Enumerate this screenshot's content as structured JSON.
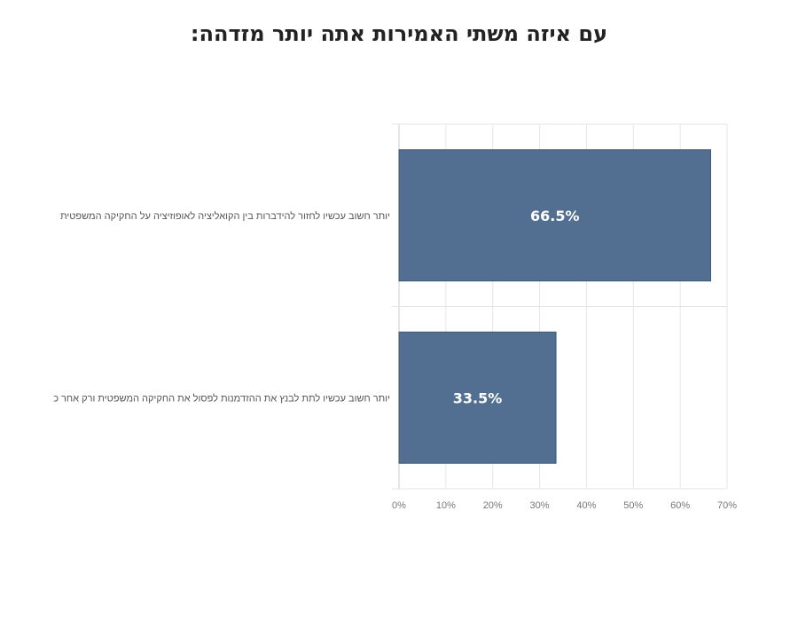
{
  "colors": {
    "bar": "#526f91",
    "bar_edge": "#3f5a7a",
    "grid": "#e6e6e6",
    "axis": "#cccccc"
  },
  "chart_data": {
    "type": "bar",
    "orientation": "horizontal",
    "title": "עם איזה משתי האמירות אתה יותר מזדהה:",
    "categories": [
      "יותר חשוב עכשיו לחזור להידברות בין הקואליציה לאופוזיציה על החקיקה המשפטית",
      "יותר חשוב עכשיו לתת לבנץ את ההזדמנות לפסול את החקיקה המשפטית ורק אחר כ"
    ],
    "values": [
      66.5,
      33.5
    ],
    "data_labels": [
      "66.5%",
      "33.5%"
    ],
    "xlim": [
      0,
      70
    ],
    "x_ticks": [
      0,
      10,
      20,
      30,
      40,
      50,
      60,
      70
    ],
    "x_tick_labels": [
      "0%",
      "10%",
      "20%",
      "30%",
      "40%",
      "50%",
      "60%",
      "70%"
    ],
    "xlabel": "",
    "ylabel": "",
    "grid": true,
    "legend": "none"
  }
}
